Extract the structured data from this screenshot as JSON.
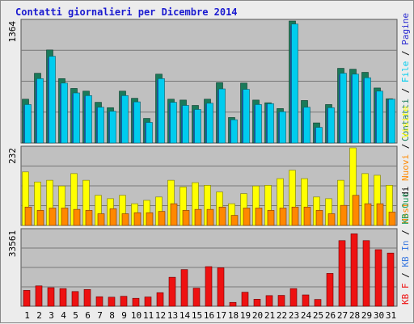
{
  "title": "Contatti giornalieri per Dicembre 2014",
  "colors": {
    "visits": "#1a7a5a",
    "pages": "#2a2ad0",
    "files": "#00ccee",
    "hits": "#2aa860",
    "hosts": "#ffff00",
    "hosts_dark": "#ff8800",
    "kbin": "#3a78e0",
    "kbout": "#22a060",
    "kbf": "#ee1111",
    "weekend": "#1a7a5a"
  },
  "chart_data": [
    {
      "type": "bar",
      "title": "Contatti giornalieri per Dicembre 2014",
      "ylabel": "1364",
      "categories": [
        "1",
        "2",
        "3",
        "4",
        "5",
        "6",
        "7",
        "8",
        "9",
        "10",
        "11",
        "12",
        "13",
        "14",
        "15",
        "16",
        "17",
        "18",
        "19",
        "20",
        "21",
        "22",
        "23",
        "24",
        "25",
        "26",
        "27",
        "28",
        "29",
        "30",
        "31"
      ],
      "weekend": [
        "6",
        "7",
        "13",
        "14",
        "20",
        "21",
        "27",
        "28"
      ],
      "ylim": [
        0,
        1364
      ],
      "legend": [
        {
          "text": "Contatti",
          "color": "#1a7a5a"
        },
        {
          "text": " / ",
          "color": "#000000"
        },
        {
          "text": "File",
          "color": "#00ccee"
        },
        {
          "text": " / ",
          "color": "#000000"
        },
        {
          "text": "Pagine",
          "color": "#2a2ad0"
        }
      ],
      "series": [
        {
          "name": "Contatti",
          "values": [
            490,
            780,
            1040,
            720,
            610,
            580,
            455,
            395,
            580,
            500,
            275,
            770,
            490,
            480,
            420,
            490,
            675,
            285,
            670,
            480,
            450,
            385,
            1364,
            475,
            225,
            430,
            835,
            825,
            790,
            615,
            495
          ]
        },
        {
          "name": "File",
          "values": [
            430,
            720,
            970,
            670,
            560,
            530,
            400,
            355,
            530,
            460,
            230,
            720,
            455,
            420,
            375,
            445,
            605,
            260,
            600,
            430,
            440,
            350,
            1330,
            400,
            175,
            395,
            780,
            770,
            730,
            580,
            490
          ]
        },
        {
          "name": "Pagine",
          "values": [
            420,
            700,
            950,
            660,
            550,
            520,
            395,
            345,
            520,
            450,
            225,
            705,
            445,
            410,
            365,
            435,
            590,
            255,
            590,
            420,
            430,
            340,
            1310,
            390,
            170,
            385,
            765,
            755,
            715,
            570,
            480
          ]
        }
      ]
    },
    {
      "type": "bar",
      "ylabel": "232",
      "categories": [
        "1",
        "2",
        "3",
        "4",
        "5",
        "6",
        "7",
        "8",
        "9",
        "10",
        "11",
        "12",
        "13",
        "14",
        "15",
        "16",
        "17",
        "18",
        "19",
        "20",
        "21",
        "22",
        "23",
        "24",
        "25",
        "26",
        "27",
        "28",
        "29",
        "30",
        "31"
      ],
      "ylim": [
        0,
        232
      ],
      "legend": [
        {
          "text": "Host",
          "color": "#ff8800"
        },
        {
          "text": " di ",
          "color": "#000000"
        },
        {
          "text": "Nuovi",
          "color": "#ff8800"
        },
        {
          "text": " / ",
          "color": "#000000"
        },
        {
          "text": "Visite",
          "color": "#ffff00"
        }
      ],
      "series": [
        {
          "name": "Visite",
          "values": [
            160,
            130,
            135,
            118,
            155,
            135,
            90,
            80,
            90,
            65,
            75,
            85,
            135,
            115,
            128,
            120,
            100,
            65,
            95,
            118,
            120,
            140,
            165,
            140,
            85,
            80,
            135,
            232,
            155,
            150,
            120
          ]
        },
        {
          "name": "Host",
          "values": [
            55,
            45,
            52,
            52,
            48,
            45,
            35,
            50,
            35,
            38,
            38,
            42,
            65,
            45,
            48,
            48,
            55,
            30,
            52,
            52,
            45,
            52,
            55,
            55,
            45,
            35,
            60,
            90,
            65,
            65,
            40
          ]
        }
      ]
    },
    {
      "type": "bar",
      "ylabel": "33561",
      "categories": [
        "1",
        "2",
        "3",
        "4",
        "5",
        "6",
        "7",
        "8",
        "9",
        "10",
        "11",
        "12",
        "13",
        "14",
        "15",
        "16",
        "17",
        "18",
        "19",
        "20",
        "21",
        "22",
        "23",
        "24",
        "25",
        "26",
        "27",
        "28",
        "29",
        "30",
        "31"
      ],
      "ylim": [
        0,
        33561
      ],
      "legend": [
        {
          "text": "KB F",
          "color": "#ee1111"
        },
        {
          "text": " / ",
          "color": "#000000"
        },
        {
          "text": "KB In",
          "color": "#3a78e0"
        },
        {
          "text": " / ",
          "color": "#000000"
        },
        {
          "text": "KB Out",
          "color": "#22a060"
        }
      ],
      "series": [
        {
          "name": "KB F",
          "values": [
            7000,
            9000,
            8200,
            7800,
            6500,
            7400,
            4200,
            4000,
            4400,
            3500,
            4100,
            6000,
            12800,
            16200,
            8000,
            17500,
            17000,
            1700,
            6200,
            3100,
            4700,
            4800,
            7800,
            5000,
            3000,
            14500,
            29000,
            32000,
            29000,
            25000,
            23500
          ]
        }
      ]
    }
  ]
}
